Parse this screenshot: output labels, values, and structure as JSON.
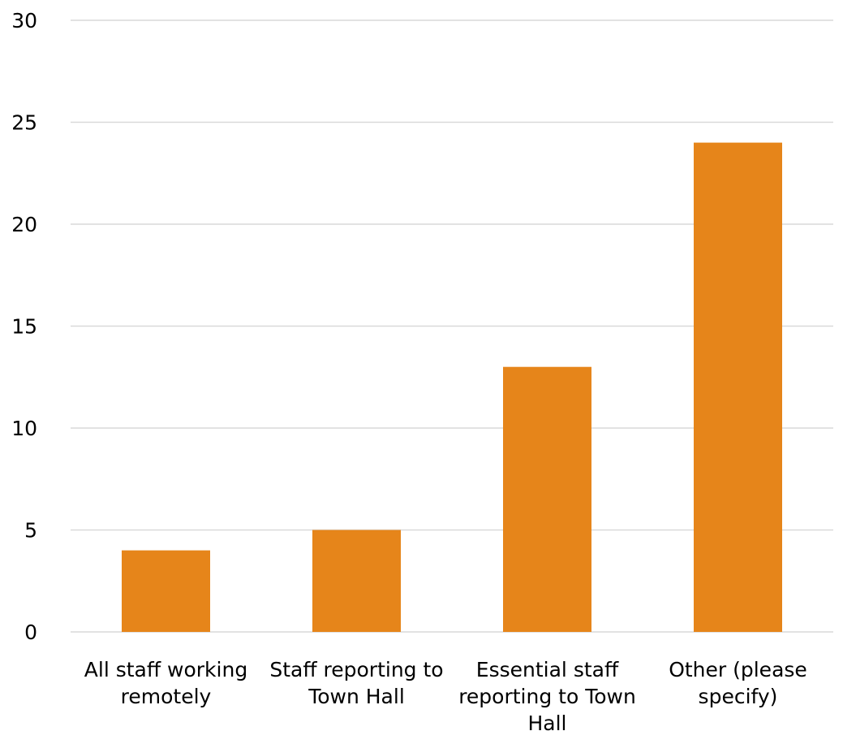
{
  "chart_data": {
    "type": "bar",
    "title": "",
    "xlabel": "",
    "ylabel": "",
    "categories": [
      [
        "All staff working",
        "remotely"
      ],
      [
        "Staff reporting to",
        "Town Hall"
      ],
      [
        "Essential staff",
        "reporting to Town",
        "Hall"
      ],
      [
        "Other (please",
        "specify)"
      ]
    ],
    "values": [
      4,
      5,
      13,
      24
    ],
    "ylim": [
      0,
      30
    ],
    "yticks": [
      "0",
      "5",
      "10",
      "15",
      "20",
      "25",
      "30"
    ],
    "grid": true,
    "legend": "none",
    "colors": {
      "bar": "#e6851a",
      "grid": "#d9d9d9"
    }
  }
}
